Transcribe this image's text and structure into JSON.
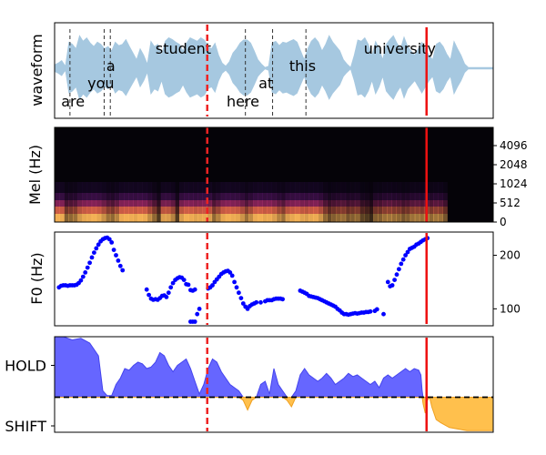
{
  "colors": {
    "waveform": "#a6c8e0",
    "f0_points": "#0000ff",
    "hold_fill": "#6666ff",
    "hold_edge": "#4444ee",
    "shift_fill": "#ffc04d",
    "shift_edge": "#f0a020",
    "current_time_line": "#ee2222",
    "end_marker_line": "#ee1111",
    "word_boundary": "#333333",
    "threshold_line": "#000000",
    "spec_background": "#050308"
  },
  "chart_data": [
    {
      "type": "area",
      "name": "waveform-panel",
      "ylabel": "waveform",
      "xlim": [
        0,
        1
      ],
      "samples": [
        0.08,
        0.12,
        0.18,
        0.05,
        0.6,
        0.55,
        0.45,
        0.75,
        0.62,
        0.7,
        0.58,
        0.5,
        0.6,
        0.55,
        0.45,
        0.5,
        0.4,
        0.6,
        0.52,
        0.55,
        0.66,
        0.5,
        0.35,
        0.2,
        0.45,
        0.3,
        0.1,
        0.62,
        0.5,
        0.55,
        0.3,
        0.62,
        0.7,
        0.66,
        0.6,
        0.55,
        0.4,
        0.58,
        0.7,
        0.66,
        0.62,
        0.7,
        0.65,
        0.5,
        0.45,
        0.58,
        0.3,
        0.12,
        0.05,
        0.15,
        0.35,
        0.45,
        0.58,
        0.65,
        0.65,
        0.58,
        0.4,
        0.2,
        0.1,
        0.02,
        0.05,
        0.58,
        0.62,
        0.52,
        0.6,
        0.58,
        0.62,
        0.66,
        0.6,
        0.4,
        0.2,
        0.45,
        0.62,
        0.7,
        0.6,
        0.4,
        0.55,
        0.75,
        0.6,
        0.5,
        0.4,
        0.2,
        0.1,
        0.02,
        0.3,
        0.65,
        0.62,
        0.7,
        0.55,
        0.3,
        0.62,
        0.45,
        0.2,
        0.55,
        0.66,
        0.75,
        0.58,
        0.45,
        0.72,
        0.5,
        0.4,
        0.3,
        0.45,
        0.6,
        0.45,
        0.3,
        0.2,
        0.55,
        0.6,
        0.5,
        0.32,
        0.2,
        0.62,
        0.45,
        0.3,
        0.1,
        0.02,
        0.02,
        0.02,
        0.02,
        0.02,
        0.02,
        0.02,
        0.02
      ],
      "word_boundaries": [
        0.035,
        0.113,
        0.127,
        0.435,
        0.497,
        0.573
      ],
      "words": [
        {
          "text": "are",
          "x": 0.015,
          "level": "low"
        },
        {
          "text": "you",
          "x": 0.075,
          "level": "mid"
        },
        {
          "text": "a",
          "x": 0.118,
          "level": "upper"
        },
        {
          "text": "student",
          "x": 0.23,
          "level": "top"
        },
        {
          "text": "here",
          "x": 0.392,
          "level": "low"
        },
        {
          "text": "at",
          "x": 0.465,
          "level": "mid"
        },
        {
          "text": "this",
          "x": 0.535,
          "level": "upper"
        },
        {
          "text": "university",
          "x": 0.705,
          "level": "top"
        }
      ],
      "current_time": 0.348,
      "end_marker": 0.848
    },
    {
      "type": "heatmap",
      "name": "mel-spectrogram-panel",
      "ylabel": "Mel (Hz)",
      "yticks": [
        "0",
        "512",
        "1024",
        "2048",
        "4096"
      ],
      "xlim": [
        0,
        1
      ],
      "energy": [
        0.95,
        0.92,
        0.5,
        0.55,
        0.6,
        0.82,
        0.9,
        0.92,
        0.95,
        0.9,
        0.78,
        0.6,
        0.55,
        0.7,
        0.92,
        0.95,
        0.93,
        0.9,
        0.95,
        0.92,
        0.75,
        0.55,
        0.3,
        0.85,
        0.85,
        0.7,
        0.3,
        0.85,
        0.95,
        0.92,
        0.88,
        0.9,
        0.92,
        0.85,
        0.55,
        0.7,
        0.9,
        0.95,
        0.92,
        0.9,
        0.8,
        0.6,
        0.75,
        0.92,
        0.95,
        0.9,
        0.92,
        0.85,
        0.7,
        0.6,
        0.85,
        0.9,
        0.95,
        0.88,
        0.85,
        0.9,
        0.92,
        0.8,
        0.55,
        0.4,
        0.5,
        0.55,
        0.58,
        0.45,
        0.5,
        0.55,
        0.35,
        0.3,
        0.2,
        0.5,
        0.5,
        0.6,
        0.62,
        0.58,
        0.55,
        0.45,
        0.5,
        0.6,
        0.62,
        0.58,
        0.62,
        0.55,
        0.62,
        0.6,
        0.45,
        0.05,
        0.02,
        0.02,
        0.02,
        0.02,
        0.02,
        0.02,
        0.02,
        0.02,
        0.02
      ],
      "current_time": 0.348,
      "end_marker": 0.848
    },
    {
      "type": "scatter",
      "name": "f0-panel",
      "ylabel": "F0 (Hz)",
      "yticks": [
        100,
        200
      ],
      "ylim": [
        70,
        240
      ],
      "xlim": [
        0,
        1
      ],
      "x": [
        0.01,
        0.015,
        0.02,
        0.025,
        0.03,
        0.035,
        0.04,
        0.045,
        0.05,
        0.055,
        0.06,
        0.065,
        0.07,
        0.075,
        0.08,
        0.085,
        0.09,
        0.095,
        0.1,
        0.105,
        0.11,
        0.115,
        0.12,
        0.125,
        0.13,
        0.135,
        0.14,
        0.145,
        0.15,
        0.155,
        0.21,
        0.215,
        0.22,
        0.225,
        0.23,
        0.235,
        0.24,
        0.245,
        0.25,
        0.255,
        0.26,
        0.265,
        0.27,
        0.275,
        0.28,
        0.285,
        0.29,
        0.295,
        0.3,
        0.305,
        0.31,
        0.315,
        0.32,
        0.325,
        0.33,
        0.31,
        0.315,
        0.32,
        0.35,
        0.355,
        0.36,
        0.365,
        0.37,
        0.375,
        0.38,
        0.385,
        0.39,
        0.395,
        0.4,
        0.405,
        0.41,
        0.415,
        0.42,
        0.425,
        0.43,
        0.435,
        0.44,
        0.445,
        0.45,
        0.455,
        0.46,
        0.47,
        0.48,
        0.485,
        0.49,
        0.495,
        0.5,
        0.505,
        0.51,
        0.515,
        0.52,
        0.56,
        0.565,
        0.57,
        0.575,
        0.58,
        0.585,
        0.59,
        0.595,
        0.6,
        0.605,
        0.61,
        0.615,
        0.62,
        0.625,
        0.63,
        0.635,
        0.64,
        0.645,
        0.65,
        0.655,
        0.66,
        0.665,
        0.67,
        0.675,
        0.68,
        0.685,
        0.69,
        0.695,
        0.7,
        0.705,
        0.71,
        0.715,
        0.72,
        0.73,
        0.735,
        0.75,
        0.76,
        0.765,
        0.77,
        0.775,
        0.78,
        0.785,
        0.79,
        0.795,
        0.8,
        0.805,
        0.81,
        0.815,
        0.82,
        0.825,
        0.83,
        0.835,
        0.84,
        0.845,
        0.85
      ],
      "y": [
        140,
        143,
        144,
        144,
        143,
        144,
        144,
        144,
        145,
        148,
        153,
        160,
        168,
        177,
        186,
        196,
        205,
        213,
        220,
        226,
        230,
        232,
        233,
        230,
        224,
        210,
        200,
        190,
        180,
        172,
        136,
        126,
        119,
        117,
        118,
        117,
        120,
        124,
        125,
        122,
        130,
        140,
        148,
        154,
        157,
        159,
        158,
        154,
        146,
        145,
        76,
        76,
        76,
        90,
        100,
        135,
        134,
        136,
        138,
        140,
        144,
        150,
        155,
        160,
        165,
        168,
        170,
        171,
        168,
        162,
        150,
        140,
        130,
        120,
        110,
        104,
        100,
        105,
        108,
        110,
        112,
        112,
        114,
        116,
        116,
        116,
        118,
        119,
        119,
        119,
        118,
        134,
        132,
        130,
        128,
        124,
        123,
        122,
        121,
        120,
        118,
        116,
        114,
        112,
        110,
        108,
        106,
        104,
        100,
        97,
        93,
        90,
        90,
        89,
        90,
        91,
        92,
        91,
        92,
        93,
        93,
        94,
        94,
        95,
        96,
        99,
        90,
        150,
        142,
        144,
        154,
        164,
        174,
        184,
        192,
        200,
        206,
        212,
        214,
        216,
        220,
        222,
        225,
        228,
        230,
        232
      ],
      "current_time": 0.348,
      "end_marker": 0.848
    },
    {
      "type": "area",
      "name": "turn-taking-panel",
      "yticks": [
        "HOLD",
        "SHIFT"
      ],
      "ylim": [
        -1.1,
        1.9
      ],
      "threshold": 0,
      "xlim": [
        0,
        1
      ],
      "x": [
        0,
        0.02,
        0.04,
        0.06,
        0.08,
        0.1,
        0.11,
        0.12,
        0.13,
        0.14,
        0.15,
        0.16,
        0.17,
        0.18,
        0.19,
        0.2,
        0.21,
        0.22,
        0.23,
        0.24,
        0.25,
        0.26,
        0.27,
        0.28,
        0.29,
        0.3,
        0.31,
        0.32,
        0.33,
        0.34,
        0.35,
        0.36,
        0.37,
        0.38,
        0.39,
        0.4,
        0.41,
        0.42,
        0.43,
        0.44,
        0.45,
        0.46,
        0.47,
        0.48,
        0.49,
        0.5,
        0.51,
        0.52,
        0.53,
        0.54,
        0.55,
        0.56,
        0.57,
        0.58,
        0.59,
        0.6,
        0.61,
        0.62,
        0.63,
        0.64,
        0.65,
        0.66,
        0.67,
        0.68,
        0.69,
        0.7,
        0.71,
        0.72,
        0.73,
        0.74,
        0.75,
        0.76,
        0.77,
        0.78,
        0.79,
        0.8,
        0.81,
        0.82,
        0.83,
        0.835,
        0.838,
        0.84,
        0.845,
        0.85,
        0.855,
        0.86,
        0.87,
        0.88,
        0.9,
        0.92,
        0.94,
        0.96,
        0.98,
        1.0
      ],
      "y": [
        1.9,
        1.9,
        1.8,
        1.85,
        1.7,
        1.3,
        0.2,
        0.05,
        0.05,
        0.4,
        0.6,
        0.9,
        0.85,
        1.0,
        1.1,
        1.05,
        0.9,
        0.95,
        1.1,
        1.4,
        1.3,
        1.0,
        0.8,
        1.0,
        1.1,
        1.2,
        0.9,
        0.5,
        0.1,
        0.4,
        0.9,
        1.2,
        1.1,
        0.8,
        0.6,
        0.4,
        0.3,
        0.2,
        -0.1,
        -0.4,
        -0.1,
        0.0,
        0.4,
        0.5,
        0.1,
        0.9,
        0.4,
        0.2,
        -0.1,
        -0.3,
        0.2,
        0.7,
        0.9,
        0.7,
        0.6,
        0.5,
        0.6,
        0.75,
        0.6,
        0.4,
        0.5,
        0.6,
        0.75,
        0.65,
        0.7,
        0.6,
        0.5,
        0.4,
        0.5,
        0.3,
        0.6,
        0.7,
        0.6,
        0.7,
        0.8,
        0.9,
        0.8,
        0.9,
        0.85,
        0.7,
        0.2,
        -0.2,
        -0.5,
        -0.1,
        0.0,
        -0.3,
        -0.7,
        -0.8,
        -0.95,
        -1.0,
        -1.05,
        -1.05,
        -1.05,
        -1.05
      ],
      "current_time": 0.348,
      "end_marker": 0.848
    }
  ]
}
